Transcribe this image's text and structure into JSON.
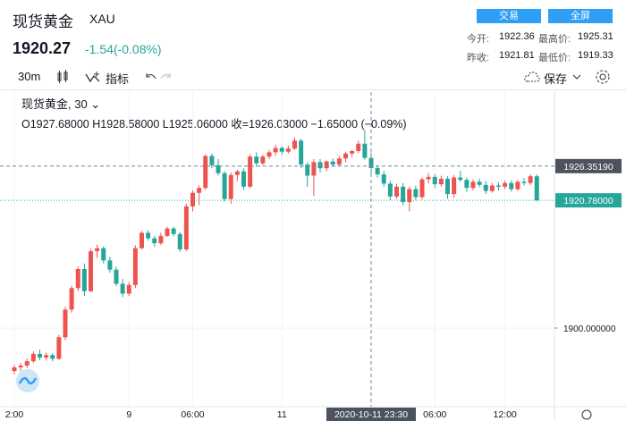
{
  "header": {
    "title": "现货黄金",
    "symbol": "XAU",
    "price": "1920.27",
    "change": "-1.54(-0.08%)",
    "buttons": [
      "交易",
      "全屏"
    ],
    "stats": [
      {
        "label": "今开:",
        "value": "1922.36"
      },
      {
        "label": "最高价:",
        "value": "1925.31"
      },
      {
        "label": "昨收:",
        "value": "1921.81"
      },
      {
        "label": "最低价:",
        "value": "1919.33"
      }
    ]
  },
  "toolbar": {
    "interval": "30m",
    "indicators": "指标",
    "save": "保存"
  },
  "chart_data": {
    "type": "candlestick",
    "legend_title": "现货黄金, 30 ⌄",
    "legend_ohlc": "O1927.68000  H1928.58000  L1925.06000  收=1926.03000  −1.65000 (−0.09%)",
    "up_color": "#ef5350",
    "down_color": "#26a69a",
    "ylim": [
      1887.2,
      1938.4
    ],
    "yticks": [
      {
        "value": 1900,
        "label": "1900.000000"
      }
    ],
    "crosshair": {
      "x": "2020-10-11 23:30",
      "y": 1926.3519,
      "y_label": "1926.35190"
    },
    "last_price": {
      "value": 1920.78,
      "label": "1920.78000"
    },
    "categories": [
      "2:00",
      null,
      null,
      null,
      null,
      null,
      null,
      null,
      null,
      null,
      null,
      null,
      null,
      null,
      null,
      null,
      null,
      null,
      "9",
      null,
      null,
      null,
      null,
      null,
      null,
      null,
      null,
      null,
      "06:00",
      null,
      null,
      null,
      null,
      null,
      null,
      null,
      null,
      null,
      null,
      null,
      null,
      null,
      "11",
      null,
      null,
      null,
      null,
      null,
      null,
      null,
      null,
      null,
      null,
      null,
      null,
      null,
      "2020-10-11 23:30",
      null,
      null,
      null,
      null,
      null,
      null,
      null,
      null,
      null,
      "06:00",
      null,
      null,
      null,
      null,
      null,
      null,
      null,
      null,
      null,
      null,
      "12:00",
      null,
      null,
      null,
      null,
      null
    ],
    "ohlc": [
      [
        1893.0,
        1894.0,
        1892.5,
        1893.6
      ],
      [
        1893.6,
        1894.3,
        1893.0,
        1893.9
      ],
      [
        1893.9,
        1895.0,
        1893.5,
        1894.6
      ],
      [
        1894.6,
        1896.2,
        1894.3,
        1895.8
      ],
      [
        1895.8,
        1896.5,
        1894.8,
        1895.2
      ],
      [
        1895.2,
        1896.0,
        1894.7,
        1895.6
      ],
      [
        1895.6,
        1895.9,
        1894.6,
        1895.0
      ],
      [
        1895.0,
        1898.9,
        1894.8,
        1898.5
      ],
      [
        1898.5,
        1903.5,
        1898.0,
        1903.0
      ],
      [
        1903.0,
        1906.9,
        1902.5,
        1906.5
      ],
      [
        1906.5,
        1910.0,
        1906.0,
        1909.6
      ],
      [
        1909.6,
        1910.5,
        1905.2,
        1906.0
      ],
      [
        1906.0,
        1912.9,
        1905.8,
        1912.5
      ],
      [
        1912.5,
        1913.6,
        1911.4,
        1913.0
      ],
      [
        1913.0,
        1913.3,
        1910.5,
        1911.0
      ],
      [
        1911.0,
        1911.6,
        1909.0,
        1909.5
      ],
      [
        1909.5,
        1910.0,
        1906.8,
        1907.2
      ],
      [
        1907.2,
        1908.0,
        1905.0,
        1905.6
      ],
      [
        1905.6,
        1907.5,
        1905.2,
        1907.0
      ],
      [
        1907.0,
        1913.5,
        1906.5,
        1913.0
      ],
      [
        1913.0,
        1915.8,
        1912.8,
        1915.5
      ],
      [
        1915.5,
        1915.9,
        1914.2,
        1914.6
      ],
      [
        1914.6,
        1915.0,
        1913.2,
        1913.8
      ],
      [
        1913.8,
        1915.5,
        1913.5,
        1915.0
      ],
      [
        1915.0,
        1916.5,
        1914.8,
        1916.2
      ],
      [
        1916.2,
        1916.5,
        1914.9,
        1915.3
      ],
      [
        1915.3,
        1915.6,
        1912.4,
        1912.8
      ],
      [
        1912.8,
        1920.2,
        1912.5,
        1919.8
      ],
      [
        1919.8,
        1922.4,
        1919.0,
        1922.0
      ],
      [
        1922.0,
        1923.2,
        1920.0,
        1922.8
      ],
      [
        1922.8,
        1928.3,
        1922.5,
        1928.0
      ],
      [
        1928.0,
        1928.4,
        1926.0,
        1926.5
      ],
      [
        1926.5,
        1927.5,
        1924.8,
        1925.2
      ],
      [
        1925.2,
        1925.5,
        1920.6,
        1921.0
      ],
      [
        1921.0,
        1925.3,
        1920.2,
        1924.9
      ],
      [
        1924.9,
        1925.8,
        1923.9,
        1925.5
      ],
      [
        1925.5,
        1926.0,
        1922.5,
        1923.0
      ],
      [
        1923.0,
        1928.3,
        1922.8,
        1927.9
      ],
      [
        1927.9,
        1928.6,
        1926.3,
        1926.8
      ],
      [
        1926.8,
        1928.2,
        1926.5,
        1927.9
      ],
      [
        1927.9,
        1929.0,
        1927.5,
        1928.6
      ],
      [
        1928.6,
        1929.8,
        1928.0,
        1929.3
      ],
      [
        1929.3,
        1929.6,
        1928.2,
        1928.7
      ],
      [
        1928.7,
        1929.7,
        1928.4,
        1929.2
      ],
      [
        1929.2,
        1931.0,
        1929.0,
        1930.5
      ],
      [
        1930.5,
        1930.8,
        1926.0,
        1926.6
      ],
      [
        1926.6,
        1927.0,
        1923.0,
        1924.8
      ],
      [
        1924.8,
        1927.5,
        1921.5,
        1927.0
      ],
      [
        1927.0,
        1927.5,
        1925.3,
        1926.0
      ],
      [
        1926.0,
        1927.3,
        1925.5,
        1927.1
      ],
      [
        1927.1,
        1927.6,
        1926.2,
        1926.6
      ],
      [
        1926.6,
        1928.0,
        1926.3,
        1927.6
      ],
      [
        1927.6,
        1928.7,
        1927.0,
        1928.4
      ],
      [
        1928.4,
        1929.0,
        1927.8,
        1928.8
      ],
      [
        1928.8,
        1930.5,
        1928.5,
        1930.0
      ],
      [
        1930.0,
        1932.2,
        1927.4,
        1927.7
      ],
      [
        1927.68,
        1928.58,
        1925.06,
        1926.03
      ],
      [
        1926.03,
        1926.5,
        1924.5,
        1925.0
      ],
      [
        1925.0,
        1925.6,
        1923.0,
        1923.5
      ],
      [
        1923.5,
        1924.0,
        1920.8,
        1921.4
      ],
      [
        1921.4,
        1923.5,
        1921.0,
        1923.0
      ],
      [
        1923.0,
        1923.6,
        1920.0,
        1920.5
      ],
      [
        1920.5,
        1923.0,
        1919.0,
        1922.6
      ],
      [
        1922.6,
        1923.2,
        1920.8,
        1921.3
      ],
      [
        1921.3,
        1924.5,
        1920.9,
        1924.2
      ],
      [
        1924.2,
        1925.2,
        1923.5,
        1924.6
      ],
      [
        1924.6,
        1925.0,
        1922.8,
        1923.4
      ],
      [
        1923.4,
        1924.8,
        1923.0,
        1924.3
      ],
      [
        1924.3,
        1924.7,
        1921.0,
        1921.8
      ],
      [
        1921.8,
        1924.9,
        1921.2,
        1924.5
      ],
      [
        1924.5,
        1925.6,
        1923.8,
        1924.1
      ],
      [
        1924.1,
        1924.5,
        1922.2,
        1922.8
      ],
      [
        1922.8,
        1924.2,
        1922.4,
        1923.8
      ],
      [
        1923.8,
        1924.3,
        1922.9,
        1923.3
      ],
      [
        1923.3,
        1923.9,
        1921.8,
        1922.3
      ],
      [
        1922.3,
        1923.6,
        1922.0,
        1923.2
      ],
      [
        1923.2,
        1923.7,
        1922.4,
        1923.0
      ],
      [
        1923.0,
        1924.0,
        1922.6,
        1923.6
      ],
      [
        1923.6,
        1924.0,
        1922.2,
        1922.6
      ],
      [
        1922.6,
        1924.1,
        1922.3,
        1923.8
      ],
      [
        1923.8,
        1924.4,
        1923.2,
        1923.6
      ],
      [
        1923.6,
        1925.0,
        1923.3,
        1924.7
      ],
      [
        1924.7,
        1925.0,
        1920.6,
        1920.78
      ]
    ]
  }
}
